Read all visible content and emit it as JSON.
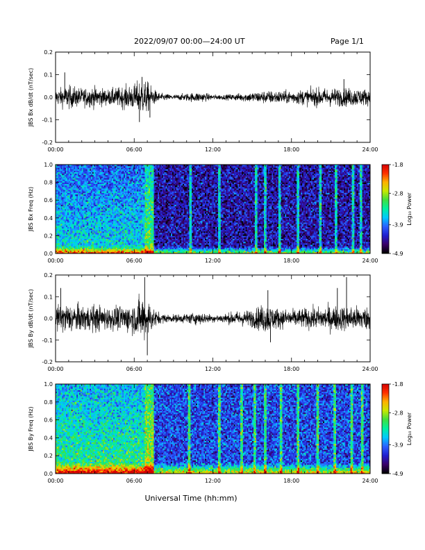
{
  "header": {
    "title": "2022/09/07  00:00—24:00 UT",
    "page": "Page 1/1"
  },
  "xlabel": "Universal Time (hh:mm)",
  "colors": {
    "trace": "#000000",
    "colormap": [
      "#000000",
      "#3a006a",
      "#2020d0",
      "#2a60ff",
      "#00c8ff",
      "#00f0a0",
      "#40e040",
      "#c8e800",
      "#ffb000",
      "#ff3000",
      "#d40000"
    ]
  },
  "chart_data": [
    {
      "type": "line",
      "ylabel": "JBS Bx dB/dt (nT/sec)",
      "x_ticks": [
        "00:00",
        "06:00",
        "12:00",
        "18:00",
        "24:00"
      ],
      "xlim": [
        0,
        24
      ],
      "ylim": [
        -0.2,
        0.2
      ],
      "y_ticks": [
        "-0.2",
        "-0.1",
        "0.0",
        "0.1",
        "0.2"
      ],
      "envelope": {
        "hours": [
          0,
          1,
          2,
          3,
          4,
          5,
          6,
          6.5,
          7,
          7.5,
          8,
          9,
          10,
          11,
          12,
          13,
          14,
          15,
          16,
          17,
          18,
          19,
          20,
          21,
          22,
          23,
          24
        ],
        "amplitude": [
          0.03,
          0.045,
          0.035,
          0.04,
          0.03,
          0.04,
          0.05,
          0.07,
          0.06,
          0.03,
          0.015,
          0.01,
          0.015,
          0.02,
          0.01,
          0.01,
          0.015,
          0.02,
          0.025,
          0.025,
          0.025,
          0.03,
          0.035,
          0.035,
          0.035,
          0.035,
          0.03
        ]
      },
      "spikes": [
        {
          "hour": 0.7,
          "value": 0.11
        },
        {
          "hour": 6.4,
          "value": -0.11
        },
        {
          "hour": 6.6,
          "value": 0.09
        },
        {
          "hour": 7.2,
          "value": -0.09
        },
        {
          "hour": 22.0,
          "value": 0.08
        }
      ]
    },
    {
      "type": "heatmap",
      "ylabel": "JBS Bx Freq (Hz)",
      "x_ticks": [
        "00:00",
        "06:00",
        "12:00",
        "18:00",
        "24:00"
      ],
      "xlim": [
        0,
        24
      ],
      "ylim": [
        0,
        1
      ],
      "y_ticks": [
        "0.0",
        "0.2",
        "0.4",
        "0.6",
        "0.8",
        "1.0"
      ],
      "colorbar": {
        "label": "Log₁₀ Power",
        "min": -4.9,
        "max": -1.8,
        "ticks": [
          "-1.8",
          "-2.8",
          "-3.9",
          "-4.9"
        ]
      },
      "active_until_hour": 7.5,
      "active_level": -3.5,
      "quiet_level": -4.4,
      "low_freq_boost_hz": 0.08,
      "streak_hours": [
        10.3,
        12.5,
        15.3,
        16.0,
        17.1,
        18.5,
        20.2,
        21.4,
        22.7,
        23.3
      ]
    },
    {
      "type": "line",
      "ylabel": "JBS By dB/dt (nT/sec)",
      "x_ticks": [
        "00:00",
        "06:00",
        "12:00",
        "18:00",
        "24:00"
      ],
      "xlim": [
        0,
        24
      ],
      "ylim": [
        -0.2,
        0.2
      ],
      "y_ticks": [
        "-0.2",
        "-0.1",
        "0.0",
        "0.1",
        "0.2"
      ],
      "envelope": {
        "hours": [
          0,
          1,
          2,
          3,
          4,
          5,
          6,
          6.5,
          7,
          7.5,
          8,
          9,
          10,
          11,
          12,
          13,
          14,
          15,
          16,
          17,
          18,
          19,
          20,
          21,
          22,
          23,
          24
        ],
        "amplitude": [
          0.05,
          0.06,
          0.05,
          0.055,
          0.045,
          0.05,
          0.06,
          0.09,
          0.08,
          0.04,
          0.02,
          0.015,
          0.02,
          0.025,
          0.015,
          0.02,
          0.03,
          0.035,
          0.06,
          0.04,
          0.035,
          0.04,
          0.045,
          0.05,
          0.05,
          0.05,
          0.045
        ]
      },
      "spikes": [
        {
          "hour": 0.4,
          "value": 0.14
        },
        {
          "hour": 6.8,
          "value": 0.19
        },
        {
          "hour": 7.0,
          "value": -0.17
        },
        {
          "hour": 16.2,
          "value": 0.13
        },
        {
          "hour": 16.4,
          "value": -0.11
        },
        {
          "hour": 22.2,
          "value": 0.19
        },
        {
          "hour": 21.5,
          "value": 0.14
        }
      ]
    },
    {
      "type": "heatmap",
      "ylabel": "JBS By Freq (Hz)",
      "x_ticks": [
        "00:00",
        "06:00",
        "12:00",
        "18:00",
        "24:00"
      ],
      "xlim": [
        0,
        24
      ],
      "ylim": [
        0,
        1
      ],
      "y_ticks": [
        "0.0",
        "0.2",
        "0.4",
        "0.6",
        "0.8",
        "1.0"
      ],
      "colorbar": {
        "label": "Log₁₀ Power",
        "min": -4.9,
        "max": -1.8,
        "ticks": [
          "-1.8",
          "-2.8",
          "-3.9",
          "-4.9"
        ]
      },
      "active_until_hour": 7.5,
      "active_level": -3.2,
      "quiet_level": -4.1,
      "low_freq_boost_hz": 0.12,
      "streak_hours": [
        10.2,
        12.5,
        14.2,
        15.2,
        16.0,
        17.2,
        18.5,
        20.0,
        21.3,
        22.6,
        23.4
      ]
    }
  ]
}
